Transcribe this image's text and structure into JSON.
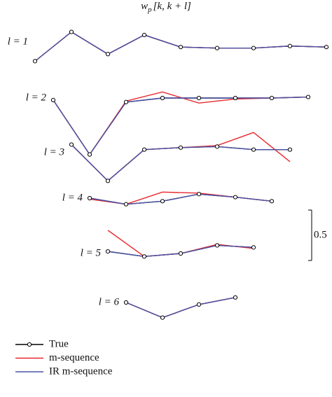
{
  "chart_data": {
    "type": "line",
    "title": "w",
    "title_subscript": "p",
    "title_suffix": "[k, k + l]",
    "series": [
      {
        "name": "True",
        "color": "#000000"
      },
      {
        "name": "m-sequence",
        "color": "#e8282e"
      },
      {
        "name": "IR m-sequence",
        "color": "#4a52a8"
      }
    ],
    "rows": [
      {
        "label": "l = 1",
        "values": [
          [
            -0.19,
            0.1,
            -0.12,
            0.07,
            -0.05,
            -0.06,
            -0.06,
            -0.04,
            -0.05
          ],
          [
            -0.19,
            0.1,
            -0.12,
            0.07,
            -0.05,
            -0.06,
            -0.06,
            -0.04,
            -0.05
          ],
          [
            -0.19,
            0.1,
            -0.12,
            0.07,
            -0.05,
            -0.06,
            -0.06,
            -0.04,
            -0.05
          ]
        ]
      },
      {
        "label": "l = 2",
        "values": [
          [
            -0.02,
            -0.56,
            -0.04,
            0,
            0,
            0,
            0,
            0.01
          ],
          [
            -0.02,
            -0.56,
            -0.03,
            0.06,
            -0.05,
            -0.01,
            0,
            0.01
          ],
          [
            -0.02,
            -0.56,
            -0.04,
            0,
            0,
            0,
            0,
            0.01
          ]
        ]
      },
      {
        "label": "l = 3",
        "values": [
          [
            0.08,
            -0.28,
            0.03,
            0.05,
            0.06,
            0.03,
            0.03
          ],
          [
            0.08,
            -0.28,
            0.03,
            0.05,
            0.07,
            0.2,
            -0.09
          ],
          [
            0.08,
            -0.28,
            0.03,
            0.05,
            0.06,
            0.03,
            0.03
          ]
        ]
      },
      {
        "label": "l = 4",
        "values": [
          [
            0,
            -0.06,
            -0.03,
            0.04,
            0.01,
            -0.03
          ],
          [
            -0.01,
            -0.06,
            0.06,
            0.05,
            0.01,
            -0.03
          ],
          [
            0,
            -0.06,
            -0.03,
            0.04,
            0.01,
            -0.03
          ]
        ]
      },
      {
        "label": "l = 5",
        "values": [
          [
            0.02,
            -0.03,
            0,
            0.08,
            0.06
          ],
          [
            0.23,
            -0.03,
            0,
            0.09,
            0.05
          ],
          [
            0.02,
            -0.03,
            0,
            0.08,
            0.06
          ]
        ]
      },
      {
        "label": "l = 6",
        "values": [
          [
            0,
            -0.15,
            -0.02,
            0.05
          ],
          [
            0,
            -0.15,
            -0.02,
            0.05
          ],
          [
            0,
            -0.15,
            -0.02,
            0.05
          ]
        ]
      }
    ],
    "scale_bar": 0.5
  }
}
